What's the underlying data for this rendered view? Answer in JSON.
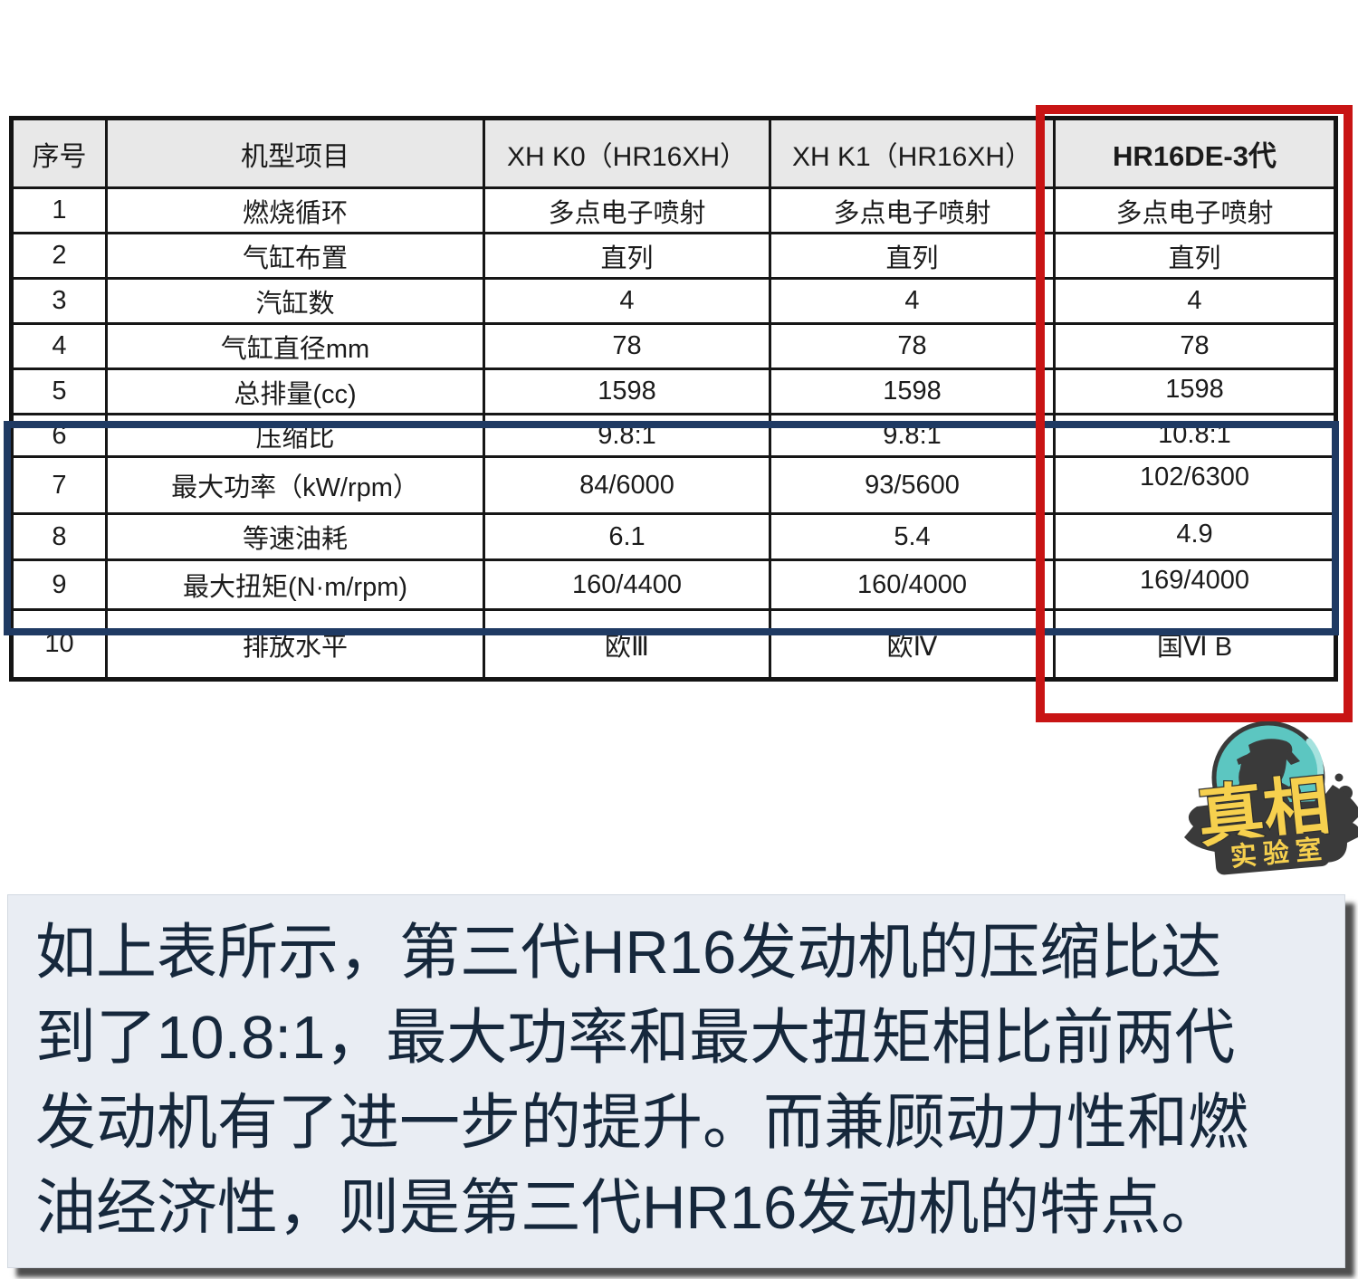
{
  "table": {
    "headers": [
      "序号",
      "机型项目",
      "XH K0（HR16XH）",
      "XH K1（HR16XH）",
      "HR16DE-3代"
    ],
    "rows": [
      [
        "1",
        "燃烧循环",
        "多点电子喷射",
        "多点电子喷射",
        "多点电子喷射"
      ],
      [
        "2",
        "气缸布置",
        "直列",
        "直列",
        "直列"
      ],
      [
        "3",
        "汽缸数",
        "4",
        "4",
        "4"
      ],
      [
        "4",
        "气缸直径mm",
        "78",
        "78",
        "78"
      ],
      [
        "5",
        "总排量(cc)",
        "1598",
        "1598",
        "1598"
      ],
      [
        "6",
        "压缩比",
        "9.8:1",
        "9.8:1",
        "10.8:1"
      ],
      [
        "7",
        "最大功率（kW/rpm）",
        "84/6000",
        "93/5600",
        "102/6300"
      ],
      [
        "8",
        "等速油耗",
        "6.1",
        "5.4",
        "4.9"
      ],
      [
        "9",
        "最大扭矩(N·m/rpm)",
        "160/4400",
        "160/4000",
        "169/4000"
      ],
      [
        "10",
        "排放水平",
        "欧Ⅲ",
        "欧Ⅳ",
        "国Ⅵ B"
      ]
    ],
    "highlighted_column": "HR16DE-3代",
    "highlighted_rows": [
      "6",
      "7",
      "8",
      "9"
    ]
  },
  "logo": {
    "title": "真相",
    "subtitle": "实验室"
  },
  "caption": {
    "lines": [
      "如上表所示，第三代HR16发动机的压缩比达",
      "到了10.8:1，最大功率和最大扭矩相比前两代",
      "发动机有了进一步的提升。而兼顾动力性和燃",
      "油经济性，则是第三代HR16发动机的特点。"
    ]
  },
  "colors": {
    "red_highlight_box": "#c81414",
    "blue_highlight_box": "#1f3a63",
    "table_header_bg": "#e8e8e8",
    "caption_bg": "#e9edf3",
    "caption_text": "#16283c",
    "logo_teal": "#5cc6c1",
    "logo_yellow": "#f6d04e",
    "logo_dark": "#3a3a3a"
  }
}
